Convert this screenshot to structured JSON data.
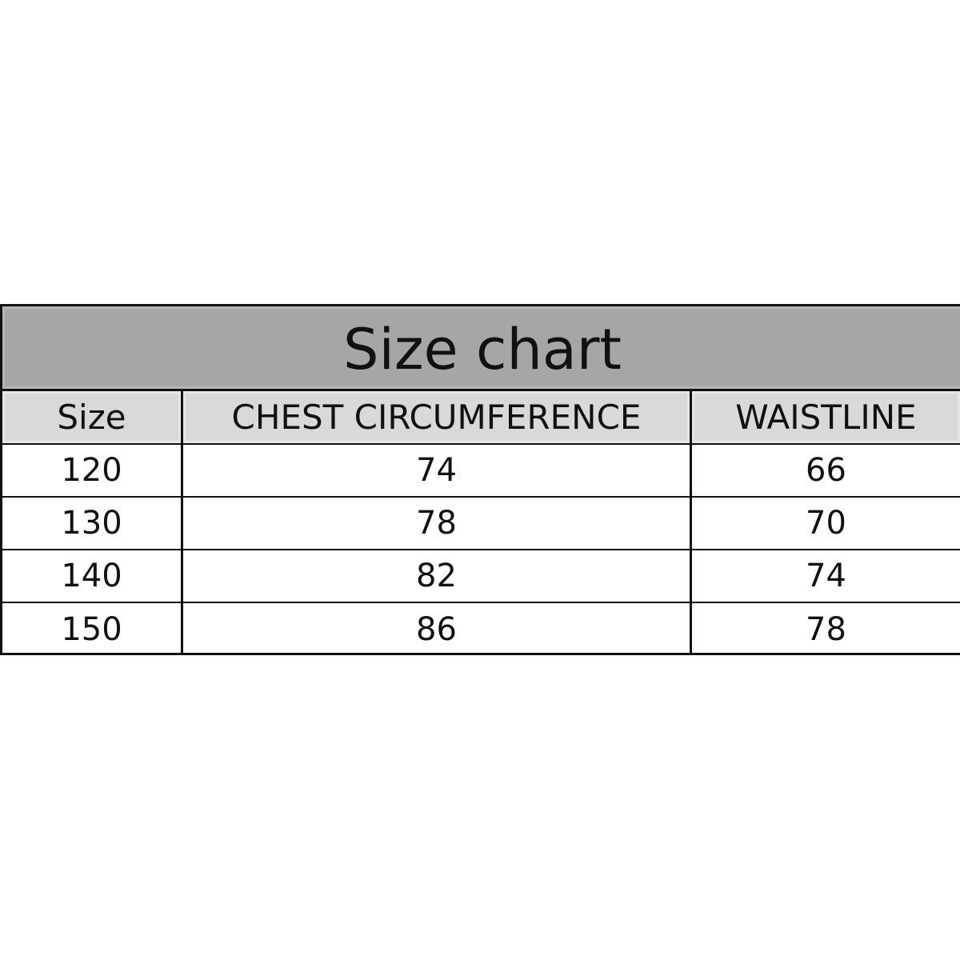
{
  "title": "Size chart",
  "headers": [
    "Size",
    "CHEST CIRCUMFERENCE",
    "WAISTLINE"
  ],
  "rows": [
    [
      "120",
      "74",
      "66"
    ],
    [
      "130",
      "78",
      "70"
    ],
    [
      "140",
      "82",
      "74"
    ],
    [
      "150",
      "86",
      "78"
    ]
  ],
  "colors": {
    "title_bg": "#a6a6a6",
    "header_bg": "#d9d9d9",
    "border": "#111111"
  }
}
